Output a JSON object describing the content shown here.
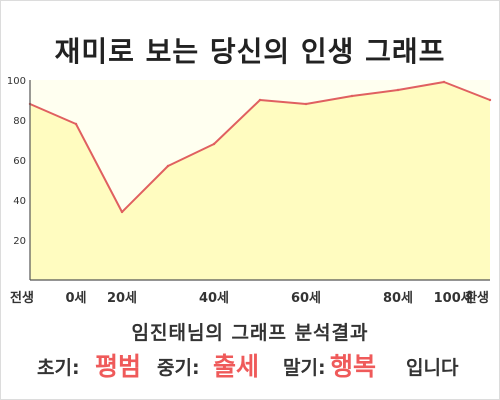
{
  "title": "재미로 보는 당신의 인생 그래프",
  "caption": "임진태님의 그래프 분석결과",
  "result": {
    "early_label": "초기:",
    "early_value": "평범",
    "mid_label": "중기:",
    "mid_value": "출세",
    "late_label": "말기:",
    "late_value": "행복",
    "ending": "입니다"
  },
  "colors": {
    "line": "#e06060",
    "area": "#fffcc0",
    "accent": "#ef5a5a"
  },
  "chart_data": {
    "type": "area",
    "title": "재미로 보는 당신의 인생 그래프",
    "xlabel": "",
    "ylabel": "",
    "ylim": [
      0,
      100
    ],
    "yticks": [
      20,
      40,
      60,
      80,
      100
    ],
    "xtick_labels": [
      "전생",
      "0세",
      "20세",
      "40세",
      "60세",
      "80세",
      "100세",
      "환생"
    ],
    "grid": false,
    "points": [
      {
        "x": "전생",
        "y": 88
      },
      {
        "x": "0세",
        "y": 78
      },
      {
        "x": "20세",
        "y": 34
      },
      {
        "x": "",
        "y": 57
      },
      {
        "x": "",
        "y": 68
      },
      {
        "x": "",
        "y": 90
      },
      {
        "x": "60세",
        "y": 88
      },
      {
        "x": "",
        "y": 92
      },
      {
        "x": "80세",
        "y": 95
      },
      {
        "x": "100세",
        "y": 99
      },
      {
        "x": "환생",
        "y": 90
      }
    ]
  }
}
